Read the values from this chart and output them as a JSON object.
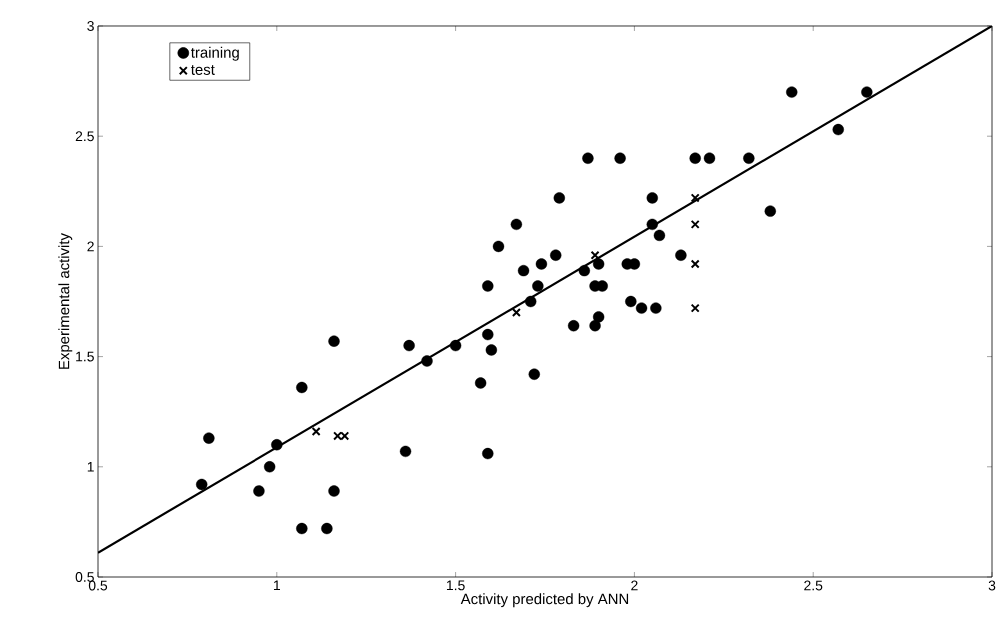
{
  "chart_data": {
    "type": "scatter",
    "xlabel": "Activity predicted by ANN",
    "ylabel": "Experimental activity",
    "xlim": [
      0.5,
      3
    ],
    "ylim": [
      0.5,
      3
    ],
    "xticks": [
      0.5,
      1,
      1.5,
      2,
      2.5,
      3
    ],
    "yticks": [
      0.5,
      1,
      1.5,
      2,
      2.5,
      3
    ],
    "grid": false,
    "legend": "top left",
    "series": [
      {
        "name": "training",
        "color": "#000000",
        "marker": "circle",
        "x": [
          0.79,
          0.81,
          0.95,
          0.98,
          1.0,
          1.07,
          1.07,
          1.14,
          1.16,
          1.16,
          1.36,
          1.37,
          1.42,
          1.5,
          1.57,
          1.59,
          1.59,
          1.6,
          1.59,
          1.62,
          1.67,
          1.69,
          1.71,
          1.72,
          1.73,
          1.74,
          1.78,
          1.79,
          1.83,
          1.86,
          1.87,
          1.89,
          1.89,
          1.9,
          1.9,
          1.91,
          1.96,
          1.98,
          1.99,
          2.0,
          2.02,
          2.05,
          2.05,
          2.06,
          2.07,
          2.13,
          2.17,
          2.21,
          2.32,
          2.38,
          2.44,
          2.57,
          2.65
        ],
        "values": [
          0.92,
          1.13,
          0.89,
          1.0,
          1.1,
          1.36,
          0.72,
          0.72,
          0.89,
          1.57,
          1.07,
          1.55,
          1.48,
          1.55,
          1.38,
          1.6,
          1.82,
          1.53,
          1.06,
          2.0,
          2.1,
          1.89,
          1.75,
          1.42,
          1.82,
          1.92,
          1.96,
          2.22,
          1.64,
          1.89,
          2.4,
          1.64,
          1.82,
          1.68,
          1.92,
          1.82,
          2.4,
          1.92,
          1.75,
          1.92,
          1.72,
          2.22,
          2.1,
          1.72,
          2.05,
          1.96,
          2.4,
          2.4,
          2.4,
          2.16,
          2.7,
          2.53,
          2.7
        ]
      },
      {
        "name": "test",
        "color": "#000000",
        "marker": "cross",
        "x": [
          1.11,
          1.17,
          1.19,
          1.67,
          1.89,
          2.17,
          2.17,
          2.17,
          2.17,
          2.17
        ],
        "values": [
          1.16,
          1.14,
          1.14,
          1.7,
          1.96,
          2.4,
          2.22,
          2.1,
          1.92,
          1.72
        ]
      },
      {
        "type": "line",
        "color": "#000000",
        "marker": "none",
        "line_style": "solid",
        "x": [
          0.5,
          3
        ],
        "values": [
          0.61,
          3
        ]
      }
    ]
  }
}
